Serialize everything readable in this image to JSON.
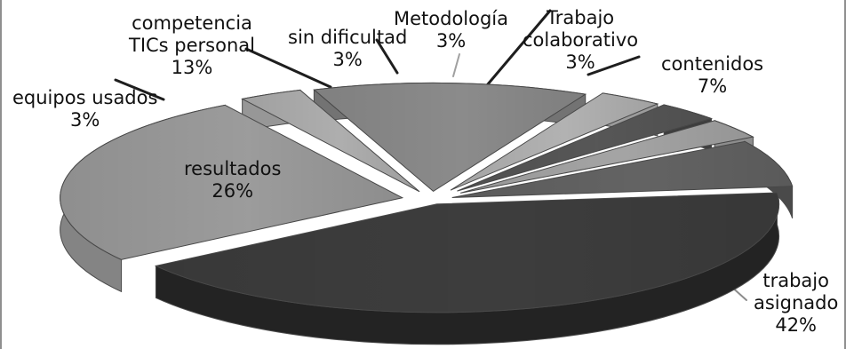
{
  "chart_data": {
    "type": "pie",
    "slices": [
      {
        "name": "trabajo asignado",
        "value": 42,
        "label_line1": "trabajo",
        "label_line2": "asignado",
        "percent": "42%",
        "color": "#3f3f3f"
      },
      {
        "name": "resultados",
        "value": 26,
        "label_line1": "resultados",
        "label_line2": "",
        "percent": "26%",
        "color": "#a0a0a0"
      },
      {
        "name": "equipos usados",
        "value": 3,
        "label_line1": "equipos usados",
        "label_line2": "",
        "percent": "3%",
        "color": "#b3b3b3"
      },
      {
        "name": "competencia TICs personal",
        "value": 13,
        "label_line1": "competencia",
        "label_line2": "TICs personal",
        "percent": "13%",
        "color": "#8f8f8f"
      },
      {
        "name": "sin dificultad",
        "value": 3,
        "label_line1": "sin dificultad",
        "label_line2": "",
        "percent": "3%",
        "color": "#b7b7b7"
      },
      {
        "name": "Metodología",
        "value": 3,
        "label_line1": "Metodología",
        "label_line2": "",
        "percent": "3%",
        "color": "#595959"
      },
      {
        "name": "Trabajo colaborativo",
        "value": 3,
        "label_line1": "Trabajo",
        "label_line2": "colaborativo",
        "percent": "3%",
        "color": "#a9a9a9"
      },
      {
        "name": "contenidos",
        "value": 7,
        "label_line1": "contenidos",
        "label_line2": "",
        "percent": "7%",
        "color": "#666666"
      }
    ]
  }
}
